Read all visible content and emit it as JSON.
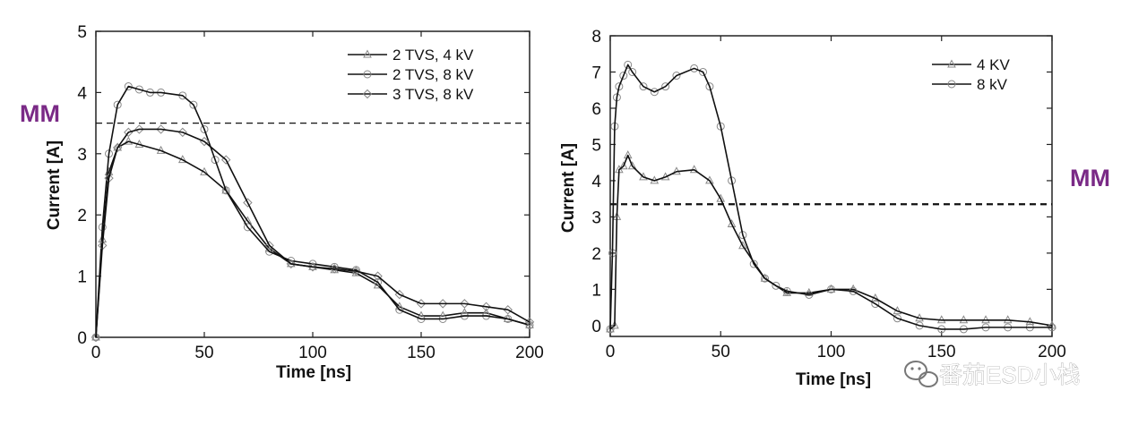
{
  "chart_data": [
    {
      "type": "line",
      "xlabel": "Time [ns]",
      "ylabel": "Current [A]",
      "xlim": [
        0,
        200
      ],
      "ylim": [
        0,
        5
      ],
      "xticks": [
        "0",
        "50",
        "100",
        "150",
        "200"
      ],
      "yticks": [
        "0",
        "1",
        "2",
        "3",
        "4",
        "5"
      ],
      "legend_position": "top-right",
      "reference_line": {
        "label": "MM",
        "y": 3.5,
        "style": "dashed"
      },
      "series": [
        {
          "name": "2 TVS, 4 kV",
          "marker": "triangle",
          "x": [
            0,
            3,
            6,
            10,
            15,
            20,
            30,
            40,
            50,
            60,
            70,
            80,
            90,
            100,
            110,
            120,
            130,
            140,
            150,
            160,
            170,
            180,
            190,
            200
          ],
          "y": [
            0,
            1.6,
            2.7,
            3.1,
            3.2,
            3.15,
            3.05,
            2.9,
            2.7,
            2.4,
            1.9,
            1.45,
            1.2,
            1.15,
            1.1,
            1.05,
            0.85,
            0.5,
            0.35,
            0.35,
            0.4,
            0.4,
            0.3,
            0.2
          ]
        },
        {
          "name": "2 TVS, 8 kV",
          "marker": "circle",
          "x": [
            0,
            3,
            6,
            10,
            15,
            20,
            25,
            30,
            40,
            45,
            50,
            55,
            60,
            70,
            80,
            90,
            100,
            110,
            120,
            130,
            140,
            150,
            160,
            170,
            180,
            190,
            200
          ],
          "y": [
            0,
            1.8,
            3.0,
            3.8,
            4.1,
            4.05,
            4.0,
            4.0,
            3.95,
            3.8,
            3.4,
            2.9,
            2.4,
            1.8,
            1.4,
            1.25,
            1.2,
            1.15,
            1.1,
            0.9,
            0.45,
            0.3,
            0.3,
            0.35,
            0.35,
            0.3,
            0.2
          ]
        },
        {
          "name": "3 TVS, 8 kV",
          "marker": "diamond",
          "x": [
            0,
            3,
            6,
            10,
            15,
            20,
            30,
            40,
            50,
            60,
            70,
            80,
            90,
            100,
            110,
            120,
            130,
            140,
            150,
            160,
            170,
            180,
            190,
            200
          ],
          "y": [
            0,
            1.5,
            2.6,
            3.1,
            3.35,
            3.4,
            3.4,
            3.35,
            3.2,
            2.9,
            2.2,
            1.5,
            1.2,
            1.15,
            1.12,
            1.08,
            1.0,
            0.7,
            0.55,
            0.55,
            0.55,
            0.5,
            0.45,
            0.25
          ]
        }
      ]
    },
    {
      "type": "line",
      "xlabel": "Time [ns]",
      "ylabel": "Current [A]",
      "xlim": [
        0,
        200
      ],
      "ylim": [
        -0.3,
        8
      ],
      "xticks": [
        "0",
        "50",
        "100",
        "150",
        "200"
      ],
      "yticks": [
        "0",
        "1",
        "2",
        "3",
        "4",
        "5",
        "6",
        "7",
        "8"
      ],
      "legend_position": "top-right",
      "reference_line": {
        "label": "MM",
        "y": 3.35,
        "style": "dashed"
      },
      "series": [
        {
          "name": "4 KV",
          "marker": "triangle",
          "x": [
            0,
            2,
            3,
            4,
            6,
            8,
            10,
            15,
            20,
            25,
            30,
            38,
            45,
            50,
            55,
            60,
            70,
            80,
            90,
            100,
            110,
            120,
            130,
            140,
            150,
            160,
            170,
            180,
            190,
            200
          ],
          "y": [
            -0.1,
            0.0,
            3.0,
            4.3,
            4.4,
            4.7,
            4.4,
            4.1,
            4.0,
            4.1,
            4.25,
            4.3,
            4.0,
            3.5,
            2.8,
            2.2,
            1.3,
            0.9,
            0.9,
            1.0,
            1.0,
            0.75,
            0.4,
            0.2,
            0.15,
            0.15,
            0.15,
            0.15,
            0.1,
            0.0
          ]
        },
        {
          "name": "8 kV",
          "marker": "circle",
          "x": [
            0,
            1,
            2,
            3,
            4,
            6,
            8,
            10,
            15,
            20,
            25,
            30,
            38,
            42,
            45,
            50,
            55,
            60,
            65,
            70,
            75,
            80,
            90,
            100,
            110,
            120,
            130,
            140,
            150,
            160,
            170,
            180,
            190,
            200
          ],
          "y": [
            -0.1,
            2.0,
            5.5,
            6.3,
            6.6,
            6.9,
            7.2,
            7.0,
            6.6,
            6.45,
            6.6,
            6.9,
            7.1,
            7.0,
            6.6,
            5.5,
            4.0,
            2.5,
            1.7,
            1.3,
            1.1,
            0.95,
            0.85,
            1.0,
            0.95,
            0.6,
            0.2,
            0.0,
            -0.1,
            -0.1,
            -0.05,
            -0.05,
            -0.05,
            -0.05
          ]
        }
      ]
    }
  ],
  "annotations": {
    "mm_left": "MM",
    "mm_right": "MM",
    "watermark": "番茄ESD小栈"
  }
}
